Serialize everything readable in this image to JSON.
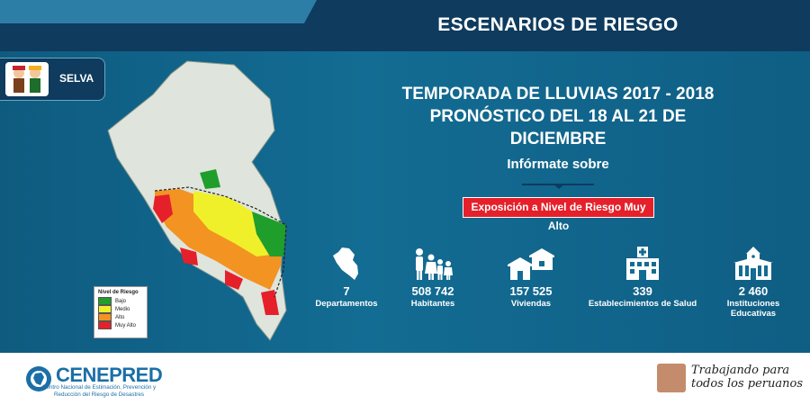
{
  "header": {
    "title": "ESCENARIOS DE RIESGO"
  },
  "region": {
    "label": "SELVA"
  },
  "season": {
    "line1": "TEMPORADA DE LLUVIAS 2017 - 2018",
    "line2": "PRONÓSTICO DEL 18 AL 21 DE DICIEMBRE"
  },
  "informate": {
    "label": "Infórmate sobre"
  },
  "exposure": {
    "label": "Exposición a Nivel de Riesgo Muy Alto"
  },
  "legend": {
    "title": "Nivel de Riesgo",
    "items": [
      {
        "label": "Bajo",
        "color": "#1f9e2c"
      },
      {
        "label": "Medio",
        "color": "#f0f02a"
      },
      {
        "label": "Alto",
        "color": "#f29322"
      },
      {
        "label": "Muy Alto",
        "color": "#e5202a"
      }
    ]
  },
  "stats": [
    {
      "value": "7",
      "label": "Departamentos",
      "icon": "peru-map-icon"
    },
    {
      "value": "508 742",
      "label": "Habitantes",
      "icon": "family-icon"
    },
    {
      "value": "157 525",
      "label": "Viviendas",
      "icon": "houses-icon"
    },
    {
      "value": "339",
      "label": "Establecimientos de Salud",
      "icon": "hospital-icon"
    },
    {
      "value": "2 460",
      "label": "Instituciones Educativas",
      "icon": "school-icon"
    }
  ],
  "footer": {
    "logo": "CENEPRED",
    "logo_sub": "Centro Nacional de Estimación, Prevención y Reducción del Riesgo de Desastres",
    "slogan_line1": "Trabajando para",
    "slogan_line2": "todos los peruanos"
  },
  "colors": {
    "header": "#0e3b5e",
    "body": "#136c93",
    "accent_red": "#e5202a"
  }
}
